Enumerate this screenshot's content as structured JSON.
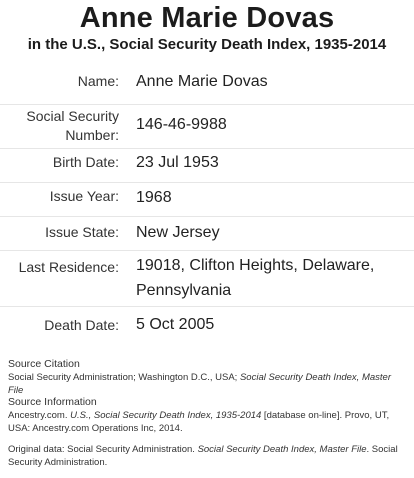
{
  "header": {
    "title": "Anne Marie Dovas",
    "subtitle": "in the U.S., Social Security Death Index, 1935-2014"
  },
  "record": [
    {
      "label": "Name:",
      "value": "Anne Marie Dovas"
    },
    {
      "label": "Social Security Number:",
      "value": "146-46-9988"
    },
    {
      "label": "Birth Date:",
      "value": "23 Jul 1953"
    },
    {
      "label": "Issue Year:",
      "value": "1968"
    },
    {
      "label": "Issue State:",
      "value": "New Jersey"
    },
    {
      "label": "Last Residence:",
      "value": "19018, Clifton Heights, Delaware, Pennsylvania"
    },
    {
      "label": "Death Date:",
      "value": "5 Oct 2005"
    }
  ],
  "source_citation": {
    "heading": "Source Citation",
    "text_plain": "Social Security Administration; Washington D.C., USA; ",
    "text_italic": "Social Security Death Index, Master File"
  },
  "source_information": {
    "heading": "Source Information",
    "part1": "Ancestry.com. ",
    "part2_italic": "U.S., Social Security Death Index, 1935-2014",
    "part3": " [database on-line]. Provo, UT, USA: Ancestry.com Operations Inc, 2014."
  },
  "original_data": {
    "part1": "Original data: Social Security Administration. ",
    "part2_italic": "Social Security Death Index, Master File",
    "part3": ". Social Security Administration."
  }
}
